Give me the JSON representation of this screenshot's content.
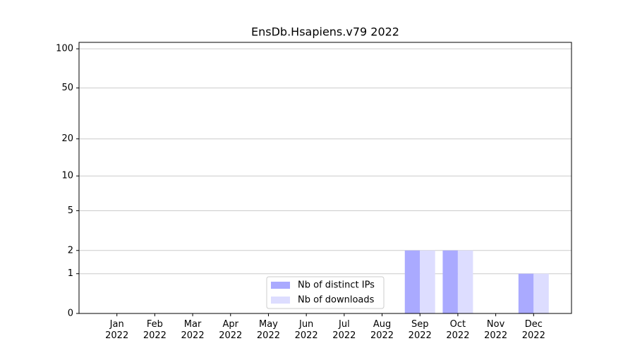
{
  "chart_data": {
    "type": "bar",
    "title": "EnsDb.Hsapiens.v79 2022",
    "categories": [
      "Jan\n2022",
      "Feb\n2022",
      "Mar\n2022",
      "Apr\n2022",
      "May\n2022",
      "Jun\n2022",
      "Jul\n2022",
      "Aug\n2022",
      "Sep\n2022",
      "Oct\n2022",
      "Nov\n2022",
      "Dec\n2022"
    ],
    "series": [
      {
        "name": "Nb of distinct IPs",
        "color": "#aaaaff",
        "values": [
          0,
          0,
          0,
          0,
          0,
          0,
          0,
          0,
          2,
          2,
          0,
          1
        ]
      },
      {
        "name": "Nb of downloads",
        "color": "#ddddff",
        "values": [
          0,
          0,
          0,
          0,
          0,
          0,
          0,
          0,
          2,
          2,
          0,
          1
        ]
      }
    ],
    "yscale": "log1p",
    "ylim": [
      0,
      112
    ],
    "yticks": [
      0,
      1,
      2,
      5,
      10,
      20,
      50,
      100
    ],
    "grid": true,
    "legend_loc": "lower center"
  }
}
